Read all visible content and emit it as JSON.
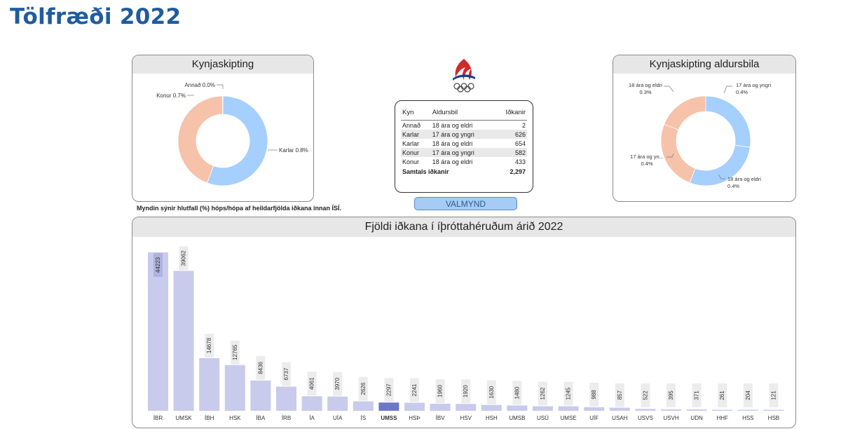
{
  "page": {
    "title": "Tölfræði 2022"
  },
  "gender_panel": {
    "title": "Kynjaskipting",
    "footnote": "Myndin sýnir hlutfall (%) hóps/hópa af heildarfjölda iðkana innan ÍSÍ.",
    "chart_data": {
      "type": "pie",
      "variant": "donut",
      "slices": [
        {
          "label": "Karlar",
          "value_label": "Karlar 0.8%",
          "share": 0.557,
          "color": "#a4cfff"
        },
        {
          "label": "Konur",
          "value_label": "Konur 0.7%",
          "share": 0.442,
          "color": "#f6c2a9"
        },
        {
          "label": "Annað",
          "value_label": "Annað 0.0%",
          "share": 0.001,
          "color": "#d9d9d9"
        }
      ]
    }
  },
  "age_panel": {
    "title": "Kynjaskipting aldursbila",
    "chart_data": {
      "type": "pie",
      "variant": "donut",
      "slices": [
        {
          "label": "17 ára og yngri",
          "line1": "17 ára og yngri",
          "line2": "0.4%",
          "share": 0.273,
          "color": "#a4cfff"
        },
        {
          "label": "18 ára og eldri",
          "line1": "18 ára og eldri",
          "line2": "0.4%",
          "share": 0.285,
          "color": "#a4cfff"
        },
        {
          "label": "17 ára og yn...",
          "line1": "17 ára og yn...",
          "line2": "0.4%",
          "share": 0.253,
          "color": "#f6c2a9"
        },
        {
          "label": "18 ára og eldri",
          "line1": "18 ára og eldri",
          "line2": "0.3%",
          "share": 0.189,
          "color": "#f6c2a9"
        }
      ]
    }
  },
  "summary_table": {
    "headers": [
      "Kyn",
      "Aldursbil",
      "Iðkanir"
    ],
    "rows": [
      {
        "kyn": "Annað",
        "aldursbil": "18 ára og eldri",
        "idkanir": "2"
      },
      {
        "kyn": "Karlar",
        "aldursbil": "17 ára og yngri",
        "idkanir": "626"
      },
      {
        "kyn": "Karlar",
        "aldursbil": "18 ára og eldri",
        "idkanir": "654"
      },
      {
        "kyn": "Konur",
        "aldursbil": "17 ára og yngri",
        "idkanir": "582"
      },
      {
        "kyn": "Konur",
        "aldursbil": "18 ára og eldri",
        "idkanir": "433"
      }
    ],
    "total_label": "Samtals iðkanir",
    "total_value": "2,297"
  },
  "valmynd_button": {
    "label": "VALMYND"
  },
  "bar_panel": {
    "title": "Fjöldi iðkana í íþróttahéruðum árið 2022",
    "chart_data": {
      "type": "bar",
      "categories": [
        "ÍBR",
        "UMSK",
        "ÍBH",
        "HSK",
        "ÍBA",
        "ÍRB",
        "ÍA",
        "UÍA",
        "ÍS",
        "UMSS",
        "HSÞ",
        "ÍBV",
        "HSV",
        "HSH",
        "UMSB",
        "USÚ",
        "UMSE",
        "UÍF",
        "USAH",
        "USVS",
        "USVH",
        "UDN",
        "HHF",
        "HSS",
        "HSB"
      ],
      "values": [
        44223,
        39062,
        14678,
        12765,
        8436,
        6737,
        4061,
        3970,
        2626,
        2297,
        2241,
        1960,
        1920,
        1630,
        1480,
        1262,
        1245,
        988,
        857,
        522,
        395,
        371,
        261,
        204,
        121
      ],
      "highlight_index": 9,
      "bar_color": "#c8cbeb",
      "highlight_color": "#6e76c8",
      "ylim": [
        0,
        44223
      ]
    }
  }
}
